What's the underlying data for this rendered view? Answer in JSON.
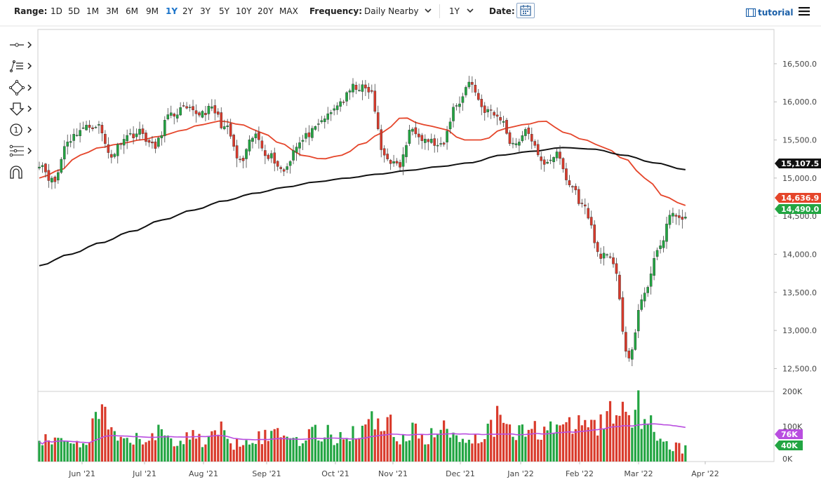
{
  "toolbar": {
    "range_label": "Range:",
    "range_options": [
      "1D",
      "5D",
      "1M",
      "3M",
      "6M",
      "9M",
      "1Y",
      "2Y",
      "3Y",
      "5Y",
      "10Y",
      "20Y",
      "MAX"
    ],
    "range_active": "1Y",
    "frequency_label": "Frequency:",
    "frequency_value": "Daily Nearby",
    "period_value": "1Y",
    "date_label": "Date:",
    "tutorial_label": "tutorial"
  },
  "drawing_tools": [
    "crosshair-icon",
    "trend-lines-icon",
    "shapes-icon",
    "arrow-down-icon",
    "counter-icon",
    "fibonacci-icon",
    "magnet-icon"
  ],
  "colors": {
    "up": "#22a542",
    "down": "#d93a2b",
    "ma_short": "#e5452a",
    "ma_long": "#111111",
    "volume_avg": "#b94ee0"
  },
  "chart_data": {
    "type": "candlestick",
    "title": "",
    "x_ticks": [
      "Jun '21",
      "Jul '21",
      "Aug '21",
      "Sep '21",
      "Oct '21",
      "Nov '21",
      "Dec '21",
      "Jan '22",
      "Feb '22",
      "Mar '22",
      "Apr '22"
    ],
    "y_ticks": [
      "16,500.0",
      "16,000.0",
      "15,500.0",
      "15,000.0",
      "14,500.0",
      "14,000.0",
      "13,500.0",
      "13,000.0",
      "12,500.0"
    ],
    "y_range": [
      12200,
      16950
    ],
    "volume_ticks": [
      "200K",
      "100K",
      "0K"
    ],
    "volume_range": [
      0,
      200000
    ],
    "price_tags": [
      {
        "label": "15,107.5",
        "series": "ma_long",
        "value": 15107.5
      },
      {
        "label": "14,636.9",
        "series": "ma_short",
        "value": 14636.9
      },
      {
        "label": "14,490.0",
        "series": "last_price",
        "value": 14490.0
      }
    ],
    "volume_tags": [
      {
        "label": "76K",
        "series": "volume_avg",
        "value": 76000
      },
      {
        "label": "40K",
        "series": "last_volume",
        "value": 40000
      }
    ],
    "monthly_closes": [
      {
        "month": "May '21",
        "close": 15200
      },
      {
        "month": "Jun '21",
        "close": 15650
      },
      {
        "month": "Jul '21",
        "close": 15500
      },
      {
        "month": "Aug '21",
        "close": 15700
      },
      {
        "month": "Sep '21",
        "close": 15750
      },
      {
        "month": "Oct '21",
        "close": 15150
      },
      {
        "month": "Nov '21",
        "close": 16100
      },
      {
        "month": "Dec '21",
        "close": 15300
      },
      {
        "month": "Jan '22",
        "close": 16000
      },
      {
        "month": "Feb '22",
        "close": 14500
      },
      {
        "month": "Mar '22",
        "close": 14490
      }
    ],
    "price_anchors": [
      15200,
      14950,
      15500,
      15650,
      15700,
      15300,
      15550,
      15600,
      15400,
      15800,
      15900,
      15850,
      15900,
      15650,
      15200,
      15550,
      15300,
      15100,
      15450,
      15600,
      15800,
      16000,
      16200,
      16150,
      15300,
      15150,
      15650,
      15500,
      15400,
      15950,
      16250,
      15900,
      15800,
      15450,
      15600,
      15200,
      15300,
      14900,
      14600,
      14000,
      13900,
      12600,
      13400,
      14000,
      14500,
      14490
    ],
    "ma_short_anchors": [
      15000,
      15100,
      15300,
      15400,
      15450,
      15500,
      15550,
      15620,
      15700,
      15750,
      15700,
      15600,
      15450,
      15300,
      15250,
      15300,
      15450,
      15600,
      15800,
      15700,
      15650,
      15500,
      15500,
      15650,
      15700,
      15750,
      15600,
      15500,
      15400,
      15250,
      15000,
      14750,
      14640
    ],
    "ma_long_anchors": [
      13850,
      14000,
      14150,
      14300,
      14450,
      14580,
      14700,
      14800,
      14880,
      14950,
      15000,
      15050,
      15100,
      15150,
      15200,
      15300,
      15350,
      15400,
      15380,
      15300,
      15200,
      15110
    ],
    "volume_anchors": [
      70,
      55,
      80,
      45,
      160,
      70,
      60,
      75,
      90,
      65,
      80,
      70,
      95,
      60,
      85,
      75,
      100,
      70,
      90,
      85,
      80,
      95,
      120,
      140,
      75,
      90,
      80,
      100,
      85,
      70,
      110,
      160,
      90,
      100,
      120,
      95,
      130,
      110,
      150,
      180,
      170,
      100,
      50,
      40
    ]
  }
}
